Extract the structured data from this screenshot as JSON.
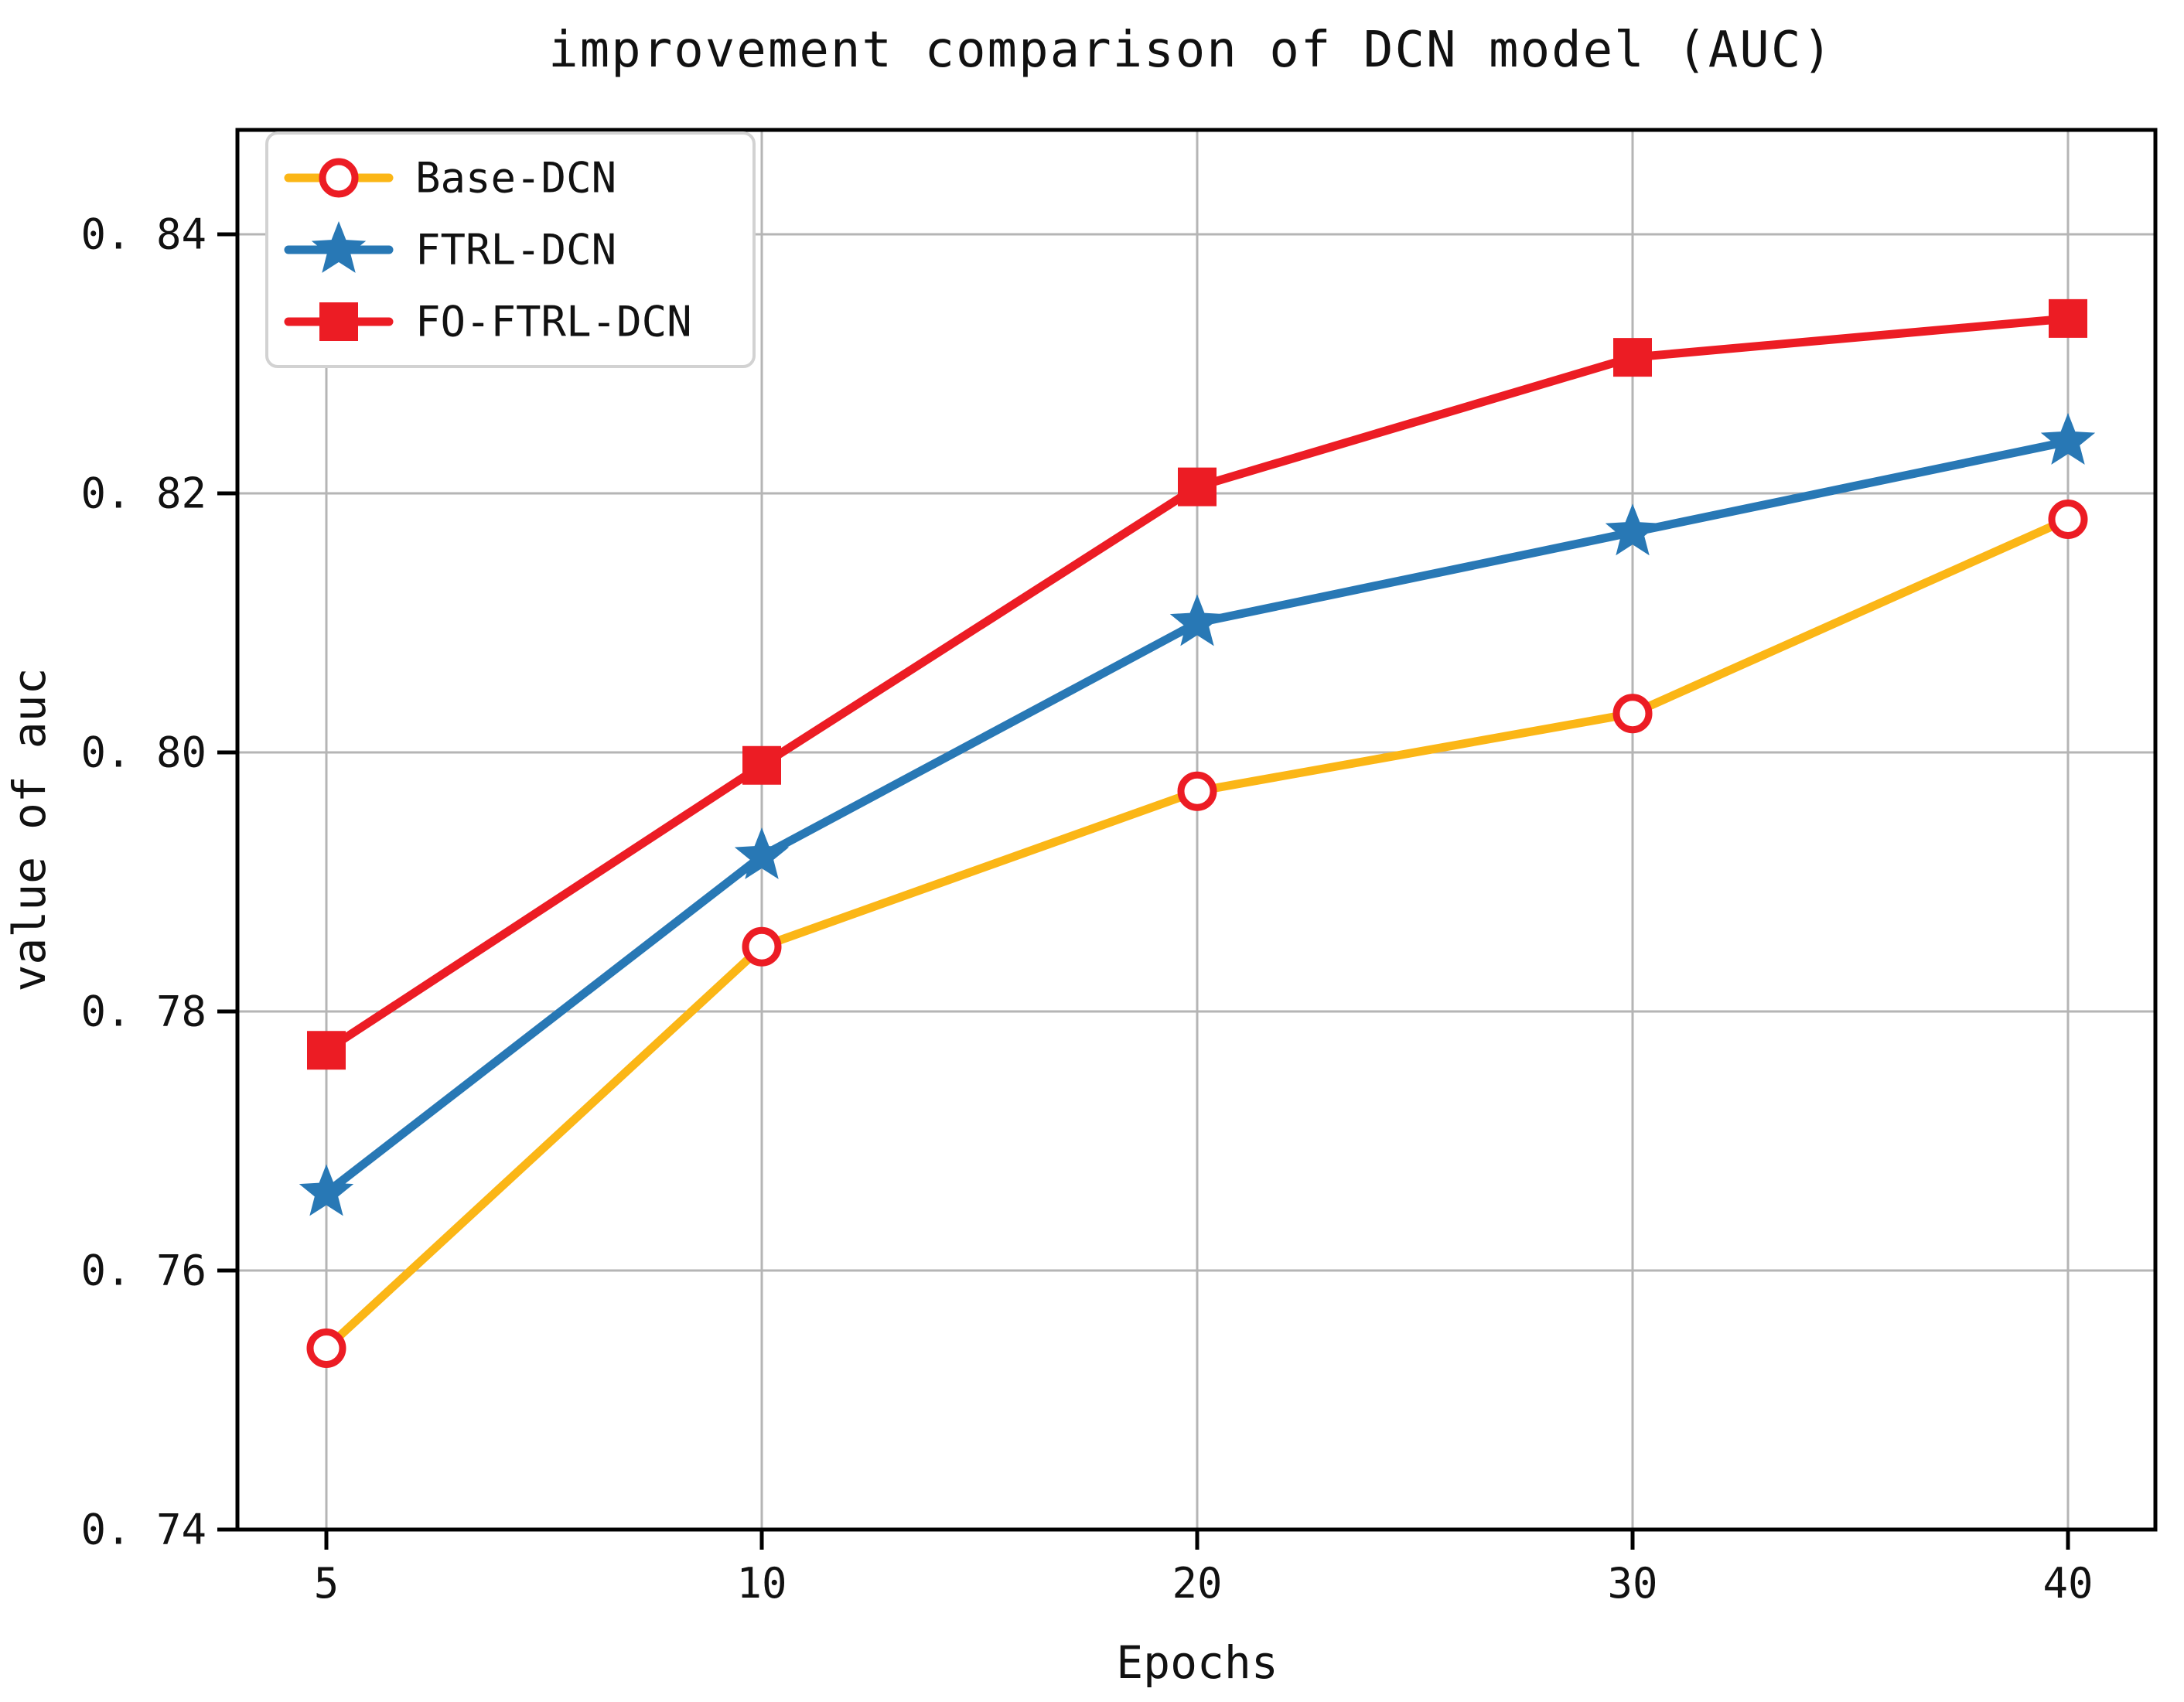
{
  "chart_data": {
    "type": "line",
    "title": "improvement comparison of DCN model (AUC)",
    "xlabel": "Epochs",
    "ylabel": "value of auc",
    "x": [
      5,
      10,
      20,
      30,
      40
    ],
    "x_tick_labels": [
      "5",
      "10",
      "20",
      "30",
      "40"
    ],
    "x_spacing": "equal",
    "y_ticks": [
      0.74,
      0.76,
      0.78,
      0.8,
      0.82,
      0.84
    ],
    "y_tick_labels": [
      "0. 74",
      "0. 76",
      "0. 78",
      "0. 80",
      "0. 82",
      "0. 84"
    ],
    "ylim": [
      0.74,
      0.848
    ],
    "grid": true,
    "legend_position": "upper left",
    "series": [
      {
        "name": "Base-DCN",
        "marker": "open-circle",
        "line_color": "#fbb616",
        "marker_color": "#ec1c24",
        "values": [
          0.754,
          0.785,
          0.797,
          0.803,
          0.818
        ]
      },
      {
        "name": "FTRL-DCN",
        "marker": "star",
        "line_color": "#2878b5",
        "marker_color": "#2878b5",
        "values": [
          0.766,
          0.792,
          0.81,
          0.817,
          0.824
        ]
      },
      {
        "name": "FO-FTRL-DCN",
        "marker": "square",
        "line_color": "#ec1c24",
        "marker_color": "#ec1c24",
        "values": [
          0.777,
          0.799,
          0.8205,
          0.8305,
          0.8335
        ]
      }
    ]
  },
  "colors": {
    "background": "#ffffff",
    "grid": "#b5b5b5",
    "axis": "#000000",
    "text": "#111111",
    "legend_border": "#d2d2d2",
    "legend_fill": "#ffffff"
  }
}
